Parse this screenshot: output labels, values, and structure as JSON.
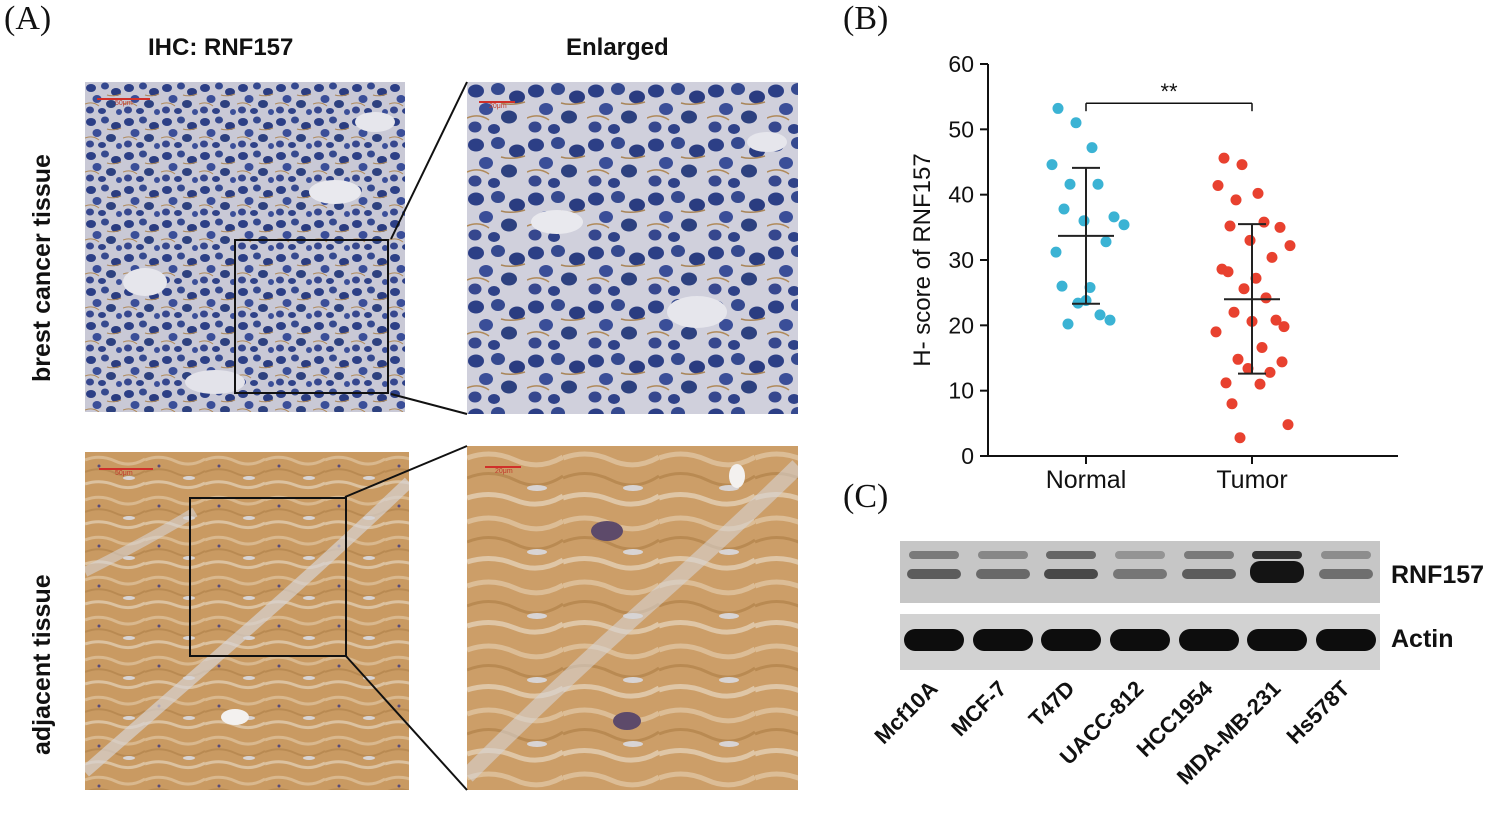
{
  "panels": {
    "a": "(A)",
    "b": "(B)",
    "c": "(C)"
  },
  "ihc": {
    "col_ihc": "IHC: RNF157",
    "col_enlarged": "Enlarged",
    "row_top": "brest cancer tissue",
    "row_bottom": "adjacent tissue",
    "scale_top_left": "50μm",
    "scale_top_right": "20μm",
    "scale_bottom_left": "50μm",
    "scale_bottom_right": "20μm"
  },
  "chart_data": {
    "type": "scatter",
    "title": "",
    "ylabel": "H- score of RNF157",
    "xlabel": "",
    "ylim": [
      0,
      60
    ],
    "yticks": [
      0,
      10,
      20,
      30,
      40,
      50,
      60
    ],
    "categories": [
      "Normal",
      "Tumor"
    ],
    "series": [
      {
        "name": "Normal",
        "color": "#3bb3d4",
        "values": [
          53.2,
          51.0,
          47.2,
          44.6,
          41.6,
          41.6,
          37.8,
          36.6,
          36.0,
          35.4,
          32.8,
          31.2,
          26.0,
          25.8,
          23.4,
          21.6,
          20.2,
          20.8,
          23.8
        ]
      },
      {
        "name": "Tumor",
        "color": "#e8412f",
        "values": [
          45.6,
          44.6,
          40.2,
          41.4,
          39.2,
          35.8,
          35.2,
          35.0,
          33.0,
          32.2,
          30.4,
          28.6,
          28.2,
          27.2,
          25.6,
          24.2,
          22.0,
          20.8,
          20.6,
          19.8,
          19.0,
          16.6,
          14.8,
          14.4,
          13.4,
          12.8,
          11.2,
          11.0,
          8.0,
          4.8,
          2.8
        ]
      }
    ],
    "means": [
      33.7,
      24.0
    ],
    "sd_high": [
      44.1,
      35.5
    ],
    "sd_low": [
      23.3,
      12.6
    ],
    "significance": "**"
  },
  "western": {
    "bands": [
      "RNF157",
      "Actin"
    ],
    "lanes": [
      "Mcf10A",
      "MCF-7",
      "T47D",
      "UACC-812",
      "HCC1954",
      "MDA-MB-231",
      "Hs578T"
    ],
    "rnf157_intensity": [
      0.45,
      0.35,
      0.6,
      0.25,
      0.45,
      1.0,
      0.3
    ]
  }
}
